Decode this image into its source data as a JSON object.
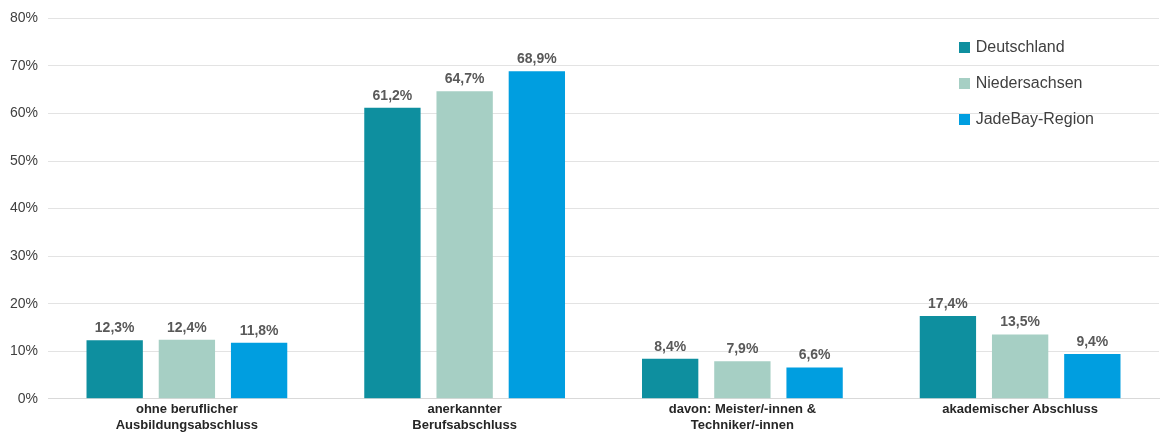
{
  "chart_data": {
    "type": "bar",
    "categories": [
      "ohne beruflicher Ausbildungsabschluss",
      "anerkannter Berufsabschluss",
      "davon: Meister/-innen & Techniker/-innen",
      "akademischer Abschluss"
    ],
    "series": [
      {
        "name": "Deutschland",
        "color": "#0e8f9f",
        "values": [
          12.3,
          61.2,
          8.4,
          17.4
        ],
        "value_labels": [
          "12,3%",
          "61,2%",
          "8,4%",
          "17,4%"
        ]
      },
      {
        "name": "Niedersachsen",
        "color": "#a6cfc4",
        "values": [
          12.4,
          64.7,
          7.9,
          13.5
        ],
        "value_labels": [
          "12,4%",
          "64,7%",
          "7,9%",
          "13,5%"
        ]
      },
      {
        "name": "JadeBay-Region",
        "color": "#009ee0",
        "values": [
          11.8,
          68.9,
          6.6,
          9.4
        ],
        "value_labels": [
          "11,8%",
          "68,9%",
          "6,6%",
          "9,4%"
        ]
      }
    ],
    "ylim": [
      0,
      80
    ],
    "yticks": [
      {
        "value": 0,
        "label": "0%"
      },
      {
        "value": 10,
        "label": "10%"
      },
      {
        "value": 20,
        "label": "20%"
      },
      {
        "value": 30,
        "label": "30%"
      },
      {
        "value": 40,
        "label": "40%"
      },
      {
        "value": 50,
        "label": "50%"
      },
      {
        "value": 60,
        "label": "60%"
      },
      {
        "value": 70,
        "label": "70%"
      },
      {
        "value": 80,
        "label": "80%"
      }
    ],
    "grid": "y",
    "legend": "top right"
  }
}
